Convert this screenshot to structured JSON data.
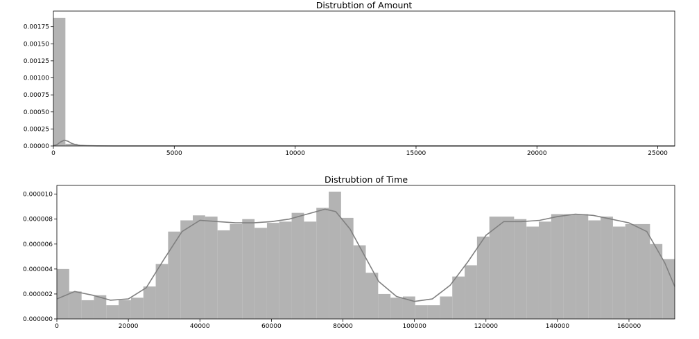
{
  "chart_data": [
    {
      "type": "bar",
      "title": "Distrubtion of Amount",
      "xlabel": "",
      "ylabel": "",
      "xlim": [
        0,
        25700
      ],
      "ylim": [
        0,
        0.00198
      ],
      "xticks": [
        0,
        5000,
        10000,
        15000,
        20000,
        25000
      ],
      "xtick_labels": [
        "0",
        "5000",
        "10000",
        "15000",
        "20000",
        "25000"
      ],
      "yticks": [
        0,
        0.00025,
        0.0005,
        0.00075,
        0.001,
        0.00125,
        0.0015,
        0.00175
      ],
      "ytick_labels": [
        "0.00000",
        "0.00025",
        "0.00050",
        "0.00075",
        "0.00100",
        "0.00125",
        "0.00150",
        "0.00175"
      ],
      "bar_color": "#b3b3b3",
      "line_color": "#808080",
      "bins": [
        {
          "x0": 0,
          "x1": 497,
          "y": 0.00188
        },
        {
          "x0": 497,
          "x1": 994,
          "y": 3.2e-05
        },
        {
          "x0": 994,
          "x1": 1491,
          "y": 8e-06
        },
        {
          "x0": 1491,
          "x1": 1988,
          "y": 3e-06
        },
        {
          "x0": 1988,
          "x1": 2485,
          "y": 1e-06
        }
      ],
      "kde": [
        [
          0,
          5e-06
        ],
        [
          150,
          2e-05
        ],
        [
          300,
          6e-05
        ],
        [
          450,
          8.5e-05
        ],
        [
          600,
          7e-05
        ],
        [
          750,
          4e-05
        ],
        [
          900,
          2e-05
        ],
        [
          1100,
          1e-05
        ],
        [
          1400,
          5e-06
        ],
        [
          1800,
          2e-06
        ],
        [
          2500,
          1e-06
        ],
        [
          25700,
          5e-07
        ]
      ],
      "grid": false
    },
    {
      "type": "bar",
      "title": "Distrubtion of Time",
      "xlabel": "",
      "ylabel": "",
      "xlim": [
        0,
        172800
      ],
      "ylim": [
        0,
        1.07e-05
      ],
      "xticks": [
        0,
        20000,
        40000,
        60000,
        80000,
        100000,
        120000,
        140000,
        160000
      ],
      "xtick_labels": [
        "0",
        "20000",
        "40000",
        "60000",
        "80000",
        "100000",
        "120000",
        "140000",
        "160000"
      ],
      "yticks": [
        0,
        2e-06,
        4e-06,
        6e-06,
        8e-06,
        1e-05
      ],
      "ytick_labels": [
        "0.000000",
        "0.000002",
        "0.000004",
        "0.000006",
        "0.000008",
        "0.000010"
      ],
      "bar_color": "#b3b3b3",
      "line_color": "#808080",
      "bin_width": 3456,
      "values": [
        4e-06,
        2.2e-06,
        1.5e-06,
        1.9e-06,
        1.1e-06,
        1.5e-06,
        1.7e-06,
        2.6e-06,
        4.4e-06,
        7e-06,
        7.9e-06,
        8.3e-06,
        8.2e-06,
        7.1e-06,
        7.6e-06,
        8e-06,
        7.3e-06,
        7.7e-06,
        7.8e-06,
        8.5e-06,
        7.8e-06,
        8.9e-06,
        1.02e-05,
        8.1e-06,
        5.9e-06,
        3.7e-06,
        2e-06,
        1.7e-06,
        1.8e-06,
        1.1e-06,
        1.1e-06,
        1.8e-06,
        3.4e-06,
        4.3e-06,
        6.6e-06,
        8.2e-06,
        8.2e-06,
        8e-06,
        7.4e-06,
        7.8e-06,
        8.4e-06,
        8.4e-06,
        8.4e-06,
        7.9e-06,
        8.2e-06,
        7.4e-06,
        7.6e-06,
        7.6e-06,
        6e-06,
        4.8e-06
      ],
      "kde": [
        [
          0,
          1.6e-06
        ],
        [
          5000,
          2.2e-06
        ],
        [
          10000,
          1.9e-06
        ],
        [
          15000,
          1.5e-06
        ],
        [
          20000,
          1.6e-06
        ],
        [
          25000,
          2.5e-06
        ],
        [
          30000,
          4.8e-06
        ],
        [
          35000,
          7e-06
        ],
        [
          40000,
          7.9e-06
        ],
        [
          45000,
          7.8e-06
        ],
        [
          50000,
          7.7e-06
        ],
        [
          55000,
          7.7e-06
        ],
        [
          60000,
          7.8e-06
        ],
        [
          65000,
          8e-06
        ],
        [
          70000,
          8.4e-06
        ],
        [
          75000,
          8.8e-06
        ],
        [
          78000,
          8.6e-06
        ],
        [
          82000,
          7.2e-06
        ],
        [
          86000,
          5.1e-06
        ],
        [
          90000,
          3e-06
        ],
        [
          95000,
          1.8e-06
        ],
        [
          100000,
          1.4e-06
        ],
        [
          105000,
          1.6e-06
        ],
        [
          110000,
          2.7e-06
        ],
        [
          115000,
          4.6e-06
        ],
        [
          120000,
          6.7e-06
        ],
        [
          125000,
          7.8e-06
        ],
        [
          130000,
          7.8e-06
        ],
        [
          135000,
          7.9e-06
        ],
        [
          140000,
          8.2e-06
        ],
        [
          145000,
          8.4e-06
        ],
        [
          150000,
          8.3e-06
        ],
        [
          155000,
          8e-06
        ],
        [
          160000,
          7.7e-06
        ],
        [
          165000,
          7e-06
        ],
        [
          170000,
          4.5e-06
        ],
        [
          172800,
          2.6e-06
        ]
      ],
      "grid": false
    }
  ]
}
